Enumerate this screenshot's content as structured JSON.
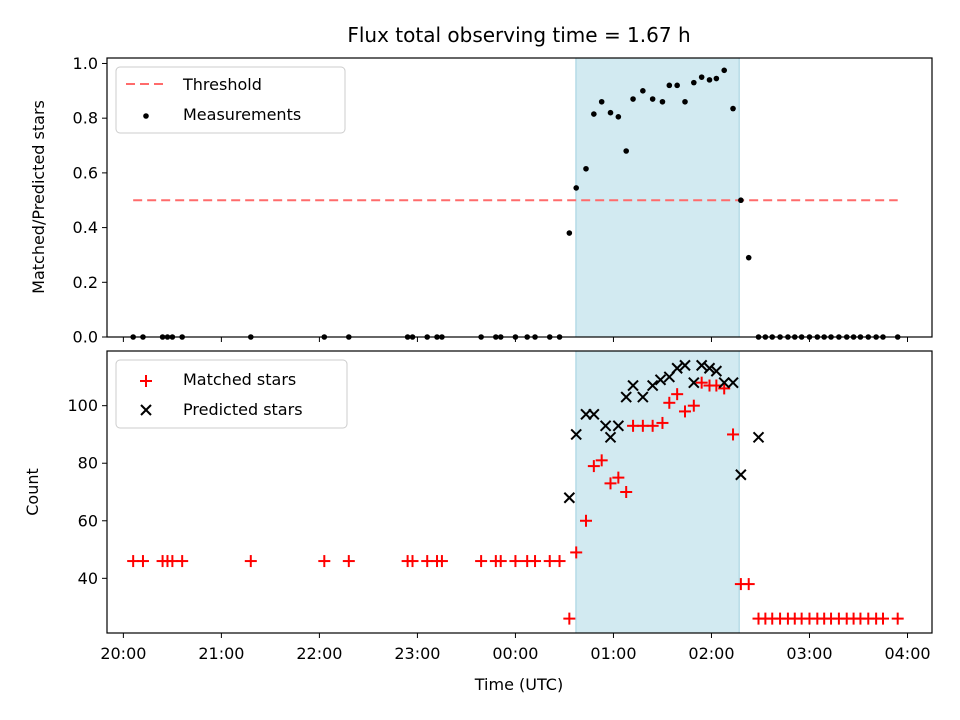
{
  "chart_data": [
    {
      "type": "scatter",
      "title": "Flux total observing time = 1.67 h",
      "xlabel": "",
      "ylabel": "Matched/Predicted stars",
      "xlim": [
        -4.167,
        4.25
      ],
      "ylim": [
        0,
        1.02
      ],
      "y_ticks": [
        0.0,
        0.2,
        0.4,
        0.6,
        0.8,
        1.0
      ],
      "y_tick_labels": [
        "0.0",
        "0.2",
        "0.4",
        "0.6",
        "0.8",
        "1.0"
      ],
      "highlight_span": [
        0.617,
        2.283
      ],
      "highlight_color": "#add8e6",
      "threshold": {
        "name": "Threshold",
        "value": 0.5,
        "x_range": [
          -3.9,
          3.9
        ],
        "color": "#ff6b6b"
      },
      "series": [
        {
          "name": "Measurements",
          "color": "#000000",
          "x": [
            -3.9,
            -3.8,
            -3.6,
            -3.55,
            -3.5,
            -3.4,
            -2.7,
            -1.95,
            -1.7,
            -1.1,
            -1.05,
            -0.9,
            -0.8,
            -0.75,
            -0.35,
            -0.2,
            -0.15,
            0.0,
            0.12,
            0.2,
            0.35,
            0.45,
            0.55,
            0.62,
            0.72,
            0.8,
            0.88,
            0.97,
            1.05,
            1.13,
            1.2,
            1.3,
            1.4,
            1.5,
            1.57,
            1.65,
            1.73,
            1.82,
            1.9,
            1.98,
            2.05,
            2.13,
            2.22,
            2.3,
            2.38,
            2.48,
            2.55,
            2.62,
            2.7,
            2.78,
            2.85,
            2.92,
            3.0,
            3.08,
            3.15,
            3.22,
            3.3,
            3.38,
            3.45,
            3.52,
            3.6,
            3.68,
            3.75,
            3.9
          ],
          "y": [
            0,
            0,
            0,
            0,
            0,
            0,
            0,
            0,
            0,
            0,
            0,
            0,
            0,
            0,
            0,
            0,
            0,
            0,
            0,
            0,
            0,
            0,
            0.38,
            0.545,
            0.615,
            0.815,
            0.86,
            0.82,
            0.805,
            0.68,
            0.87,
            0.9,
            0.87,
            0.86,
            0.92,
            0.92,
            0.86,
            0.93,
            0.95,
            0.94,
            0.945,
            0.975,
            0.835,
            0.5,
            0.29,
            0,
            0,
            0,
            0,
            0,
            0,
            0,
            0,
            0,
            0,
            0,
            0,
            0,
            0,
            0,
            0,
            0,
            0,
            0
          ]
        }
      ]
    },
    {
      "type": "scatter",
      "title": "",
      "xlabel": "Time (UTC)",
      "ylabel": "Count",
      "xlim": [
        -4.167,
        4.25
      ],
      "ylim": [
        21,
        119
      ],
      "y_ticks": [
        40,
        60,
        80,
        100
      ],
      "y_tick_labels": [
        "40",
        "60",
        "80",
        "100"
      ],
      "x_ticks": [
        -4,
        -3,
        -2,
        -1,
        0,
        1,
        2,
        3,
        4
      ],
      "x_tick_labels": [
        "20:00",
        "21:00",
        "22:00",
        "23:00",
        "00:00",
        "01:00",
        "02:00",
        "03:00",
        "04:00"
      ],
      "highlight_span": [
        0.617,
        2.283
      ],
      "highlight_color": "#add8e6",
      "series": [
        {
          "name": "Matched stars",
          "marker": "plus",
          "color": "#ff0000",
          "x": [
            -3.9,
            -3.8,
            -3.6,
            -3.55,
            -3.5,
            -3.4,
            -2.7,
            -1.95,
            -1.7,
            -1.1,
            -1.05,
            -0.9,
            -0.8,
            -0.75,
            -0.35,
            -0.2,
            -0.15,
            0.0,
            0.12,
            0.2,
            0.35,
            0.45,
            0.55,
            0.62,
            0.72,
            0.8,
            0.88,
            0.97,
            1.05,
            1.13,
            1.2,
            1.3,
            1.4,
            1.5,
            1.57,
            1.65,
            1.73,
            1.82,
            1.9,
            1.98,
            2.05,
            2.13,
            2.22,
            2.3,
            2.38,
            2.48,
            2.55,
            2.62,
            2.7,
            2.78,
            2.85,
            2.92,
            3.0,
            3.08,
            3.15,
            3.22,
            3.3,
            3.38,
            3.45,
            3.52,
            3.6,
            3.68,
            3.75,
            3.9
          ],
          "y": [
            46,
            46,
            46,
            46,
            46,
            46,
            46,
            46,
            46,
            46,
            46,
            46,
            46,
            46,
            46,
            46,
            46,
            46,
            46,
            46,
            46,
            46,
            26,
            49,
            60,
            79,
            81,
            73,
            75,
            70,
            93,
            93,
            93,
            94,
            101,
            104,
            98,
            100,
            108,
            107,
            107,
            106,
            90,
            38,
            38,
            26,
            26,
            26,
            26,
            26,
            26,
            26,
            26,
            26,
            26,
            26,
            26,
            26,
            26,
            26,
            26,
            26,
            26,
            26
          ]
        },
        {
          "name": "Predicted stars",
          "marker": "x",
          "color": "#000000",
          "x": [
            0.55,
            0.62,
            0.72,
            0.8,
            0.92,
            0.97,
            1.05,
            1.13,
            1.2,
            1.3,
            1.4,
            1.48,
            1.57,
            1.65,
            1.73,
            1.82,
            1.9,
            1.98,
            2.05,
            2.13,
            2.22,
            2.3,
            2.48
          ],
          "y": [
            68,
            90,
            97,
            97,
            93,
            89,
            93,
            103,
            107,
            103,
            107,
            109,
            110,
            113,
            114,
            108,
            114,
            113,
            112,
            108,
            108,
            76,
            89
          ]
        }
      ]
    }
  ]
}
